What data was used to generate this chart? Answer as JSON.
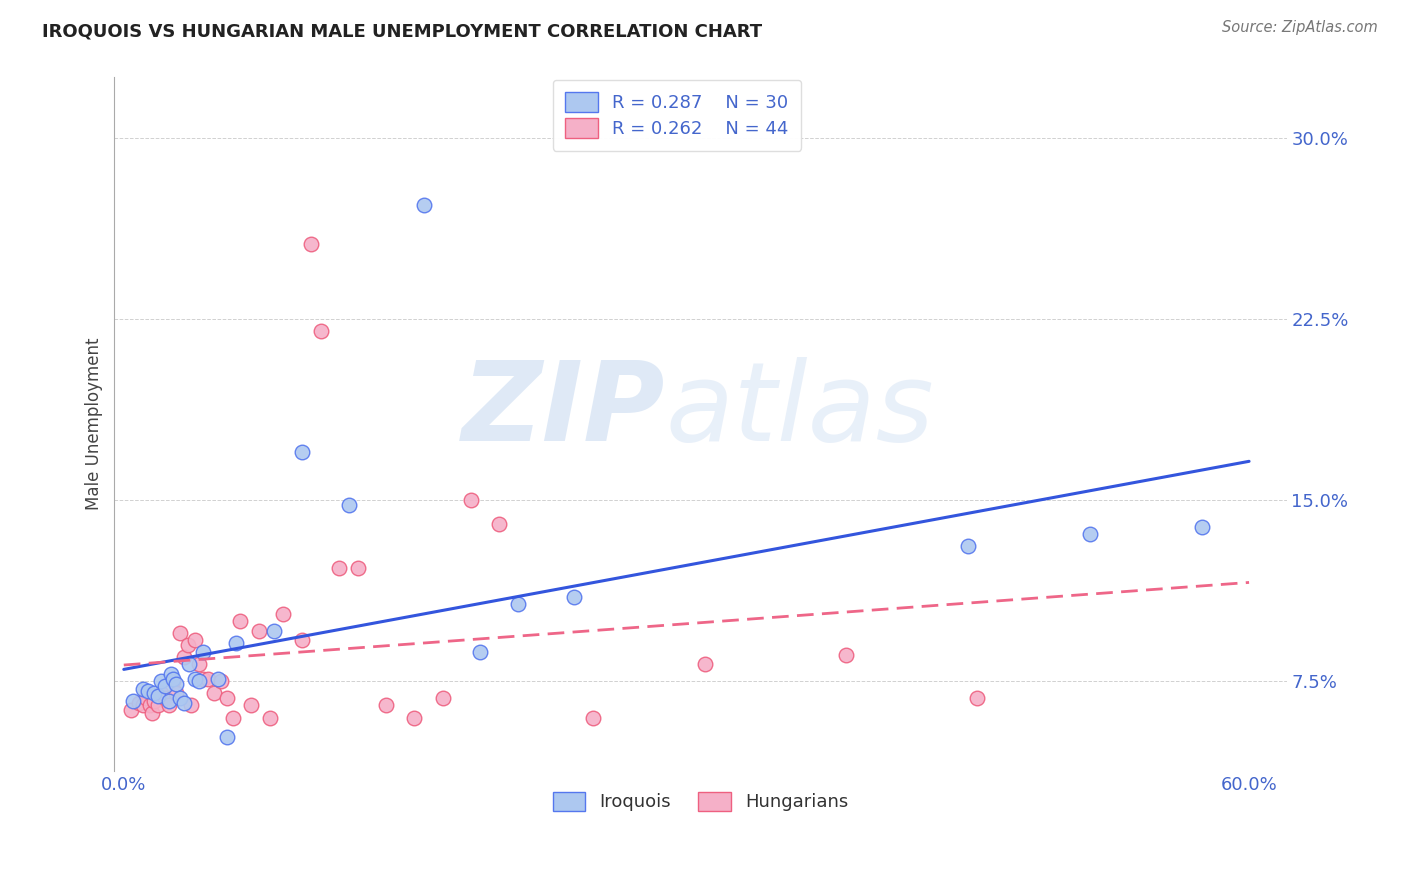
{
  "title": "IROQUOIS VS HUNGARIAN MALE UNEMPLOYMENT CORRELATION CHART",
  "source": "Source: ZipAtlas.com",
  "ylabel": "Male Unemployment",
  "ytick_labels": [
    "7.5%",
    "15.0%",
    "22.5%",
    "30.0%"
  ],
  "ytick_values": [
    0.075,
    0.15,
    0.225,
    0.3
  ],
  "xlim": [
    -0.005,
    0.62
  ],
  "ylim": [
    0.038,
    0.325
  ],
  "iroquois_color_fill": "#adc8f0",
  "iroquois_color_edge": "#5577ee",
  "hungarian_color_fill": "#f5b0c8",
  "hungarian_color_edge": "#ee6080",
  "trend_blue": "#3355dd",
  "trend_pink": "#ee6688",
  "label_blue": "#4466cc",
  "grid_color": "#cccccc",
  "iroquois_x": [
    0.005,
    0.01,
    0.013,
    0.016,
    0.018,
    0.02,
    0.022,
    0.024,
    0.025,
    0.026,
    0.028,
    0.03,
    0.032,
    0.035,
    0.038,
    0.04,
    0.042,
    0.05,
    0.055,
    0.06,
    0.08,
    0.095,
    0.12,
    0.16,
    0.19,
    0.21,
    0.24,
    0.45,
    0.515,
    0.575
  ],
  "iroquois_y": [
    0.067,
    0.072,
    0.071,
    0.07,
    0.069,
    0.075,
    0.073,
    0.067,
    0.078,
    0.076,
    0.074,
    0.068,
    0.066,
    0.082,
    0.076,
    0.075,
    0.087,
    0.076,
    0.052,
    0.091,
    0.096,
    0.17,
    0.148,
    0.272,
    0.087,
    0.107,
    0.11,
    0.131,
    0.136,
    0.139
  ],
  "hungarian_x": [
    0.004,
    0.008,
    0.01,
    0.012,
    0.014,
    0.015,
    0.016,
    0.018,
    0.02,
    0.022,
    0.024,
    0.026,
    0.028,
    0.03,
    0.032,
    0.034,
    0.036,
    0.038,
    0.04,
    0.042,
    0.045,
    0.048,
    0.052,
    0.055,
    0.058,
    0.062,
    0.068,
    0.072,
    0.078,
    0.085,
    0.095,
    0.1,
    0.105,
    0.115,
    0.125,
    0.14,
    0.155,
    0.17,
    0.185,
    0.2,
    0.25,
    0.31,
    0.385,
    0.455
  ],
  "hungarian_y": [
    0.063,
    0.066,
    0.065,
    0.068,
    0.065,
    0.062,
    0.067,
    0.065,
    0.07,
    0.068,
    0.065,
    0.075,
    0.07,
    0.095,
    0.085,
    0.09,
    0.065,
    0.092,
    0.082,
    0.076,
    0.076,
    0.07,
    0.075,
    0.068,
    0.06,
    0.1,
    0.065,
    0.096,
    0.06,
    0.103,
    0.092,
    0.256,
    0.22,
    0.122,
    0.122,
    0.065,
    0.06,
    0.068,
    0.15,
    0.14,
    0.06,
    0.082,
    0.086,
    0.068
  ]
}
